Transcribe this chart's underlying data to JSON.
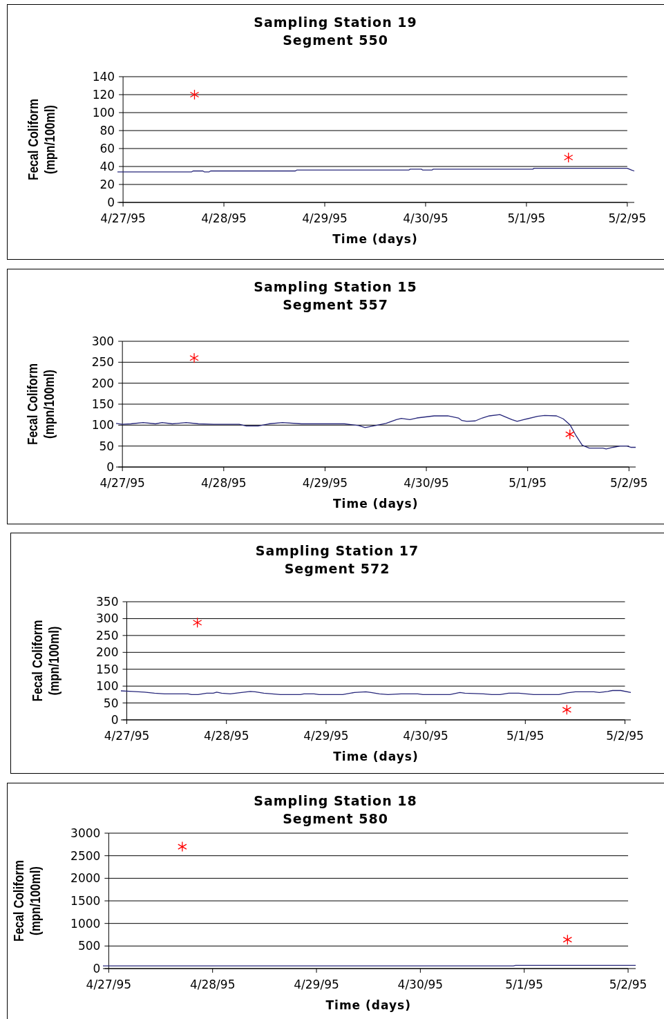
{
  "chart_data": [
    {
      "type": "line",
      "title": "Sampling Station 19",
      "subtitle": "Segment 550",
      "xlabel": "Time (days)",
      "ylabel": "Fecal Coliform\n(mpn/100ml)",
      "xlim": [
        "1995-04-26T22:40",
        "1995-05-02T01:40"
      ],
      "xticks": [
        {
          "value": "1995-04-27",
          "label": "4/27/95"
        },
        {
          "value": "1995-04-28",
          "label": "4/28/95"
        },
        {
          "value": "1995-04-29",
          "label": "4/29/95"
        },
        {
          "value": "1995-04-30",
          "label": "4/30/95"
        },
        {
          "value": "1995-05-01",
          "label": "5/1/95"
        },
        {
          "value": "1995-05-02",
          "label": "5/2/95"
        }
      ],
      "ylim": [
        0,
        140
      ],
      "yticks": [
        0,
        20,
        40,
        60,
        80,
        100,
        120,
        140
      ],
      "grid": "y",
      "series": [
        {
          "type": "line",
          "color": "#26267a",
          "x": [
            "1995-04-26T22:40",
            "1995-04-27T16:20",
            "1995-04-27T16:40",
            "1995-04-27T19:00",
            "1995-04-27T19:20",
            "1995-04-27T20:30",
            "1995-04-27T20:50",
            "1995-04-28T17:00",
            "1995-04-28T17:20",
            "1995-04-29T20:00",
            "1995-04-29T20:20",
            "1995-04-29T23:00",
            "1995-04-29T23:20",
            "1995-04-30T01:30",
            "1995-04-30T01:50",
            "1995-05-01T01:30",
            "1995-05-01T01:50",
            "1995-05-02T00:00",
            "1995-05-02T01:00",
            "1995-05-02T01:40"
          ],
          "values": [
            34,
            34,
            35,
            35,
            34,
            34,
            35,
            35,
            36,
            36,
            37,
            37,
            36,
            36,
            37,
            37,
            38,
            38,
            36,
            35
          ]
        },
        {
          "type": "scatter",
          "color": "#ff0000",
          "marker": "cross",
          "x": [
            "1995-04-27T17:00",
            "1995-05-01T10:00"
          ],
          "values": [
            120,
            50
          ]
        }
      ]
    },
    {
      "type": "line",
      "title": "Sampling Station 15",
      "subtitle": "Segment 557",
      "xlabel": "Time (days)",
      "ylabel": "Fecal Coliform\n(mpn/100ml)",
      "xlim": [
        "1995-04-26T22:30",
        "1995-05-02T01:35"
      ],
      "xticks": [
        {
          "value": "1995-04-27",
          "label": "4/27/95"
        },
        {
          "value": "1995-04-28",
          "label": "4/28/95"
        },
        {
          "value": "1995-04-29",
          "label": "4/29/95"
        },
        {
          "value": "1995-04-30",
          "label": "4/30/95"
        },
        {
          "value": "1995-05-01",
          "label": "5/1/95"
        },
        {
          "value": "1995-05-02",
          "label": "5/2/95"
        }
      ],
      "ylim": [
        0,
        300
      ],
      "yticks": [
        0,
        50,
        100,
        150,
        200,
        250,
        300
      ],
      "grid": "y",
      "series": [
        {
          "type": "line",
          "color": "#26267a",
          "x": [
            "1995-04-26T22:30",
            "1995-04-27T00:00",
            "1995-04-27T02:00",
            "1995-04-27T04:55",
            "1995-04-27T07:50",
            "1995-04-27T09:25",
            "1995-04-27T11:50",
            "1995-04-27T15:05",
            "1995-04-27T18:00",
            "1995-04-27T21:35",
            "1995-04-28T03:40",
            "1995-04-28T05:20",
            "1995-04-28T08:10",
            "1995-04-28T10:40",
            "1995-04-28T13:55",
            "1995-04-28T18:25",
            "1995-04-29T04:35",
            "1995-04-29T07:55",
            "1995-04-29T09:30",
            "1995-04-29T12:00",
            "1995-04-29T14:25",
            "1995-04-29T16:55",
            "1995-04-29T18:05",
            "1995-04-29T20:05",
            "1995-04-29T21:45",
            "1995-04-30T01:50",
            "1995-04-30T05:05",
            "1995-04-30T07:35",
            "1995-04-30T08:25",
            "1995-04-30T09:35",
            "1995-04-30T11:35",
            "1995-04-30T13:15",
            "1995-04-30T14:55",
            "1995-04-30T17:25",
            "1995-04-30T18:35",
            "1995-04-30T20:15",
            "1995-04-30T21:30",
            "1995-04-30T23:05",
            "1995-05-01T02:20",
            "1995-05-01T04:00",
            "1995-05-01T06:50",
            "1995-05-01T08:25",
            "1995-05-01T10:05",
            "1995-05-01T11:20",
            "1995-05-01T12:55",
            "1995-05-01T14:35",
            "1995-05-01T17:50",
            "1995-05-01T18:35",
            "1995-05-01T20:15",
            "1995-05-01T21:55",
            "1995-05-01T23:30",
            "1995-05-02T00:25",
            "1995-05-02T01:35"
          ],
          "values": [
            104,
            102,
            103,
            106,
            103,
            106,
            103,
            106,
            103,
            102,
            102,
            98,
            98,
            103,
            106,
            103,
            103,
            99,
            94,
            99,
            104,
            113,
            116,
            113,
            117,
            122,
            122,
            117,
            111,
            109,
            110,
            117,
            122,
            125,
            120,
            113,
            109,
            113,
            121,
            123,
            122,
            115,
            100,
            77,
            52,
            45,
            45,
            43,
            47,
            50,
            50,
            47,
            47
          ]
        },
        {
          "type": "scatter",
          "color": "#ff0000",
          "marker": "cross",
          "x": [
            "1995-04-27T17:00",
            "1995-05-01T10:00"
          ],
          "values": [
            260,
            78
          ]
        }
      ]
    },
    {
      "type": "line",
      "title": "Sampling Station 17",
      "subtitle": "Segment 572",
      "xlabel": "Time (days)",
      "ylabel": "Fecal Coliform\n(mpn/100ml)",
      "xlim": [
        "1995-04-26T22:35",
        "1995-05-02T01:25"
      ],
      "xticks": [
        {
          "value": "1995-04-27",
          "label": "4/27/95"
        },
        {
          "value": "1995-04-28",
          "label": "4/28/95"
        },
        {
          "value": "1995-04-29",
          "label": "4/29/95"
        },
        {
          "value": "1995-04-30",
          "label": "4/30/95"
        },
        {
          "value": "1995-05-01",
          "label": "5/1/95"
        },
        {
          "value": "1995-05-02",
          "label": "5/2/95"
        }
      ],
      "ylim": [
        0,
        350
      ],
      "yticks": [
        0,
        50,
        100,
        150,
        200,
        250,
        300,
        350
      ],
      "grid": "y",
      "series": [
        {
          "type": "line",
          "color": "#26267a",
          "x": [
            "1995-04-26T22:35",
            "1995-04-27T01:25",
            "1995-04-27T04:15",
            "1995-04-27T06:40",
            "1995-04-27T09:05",
            "1995-04-27T14:45",
            "1995-04-27T15:35",
            "1995-04-27T17:10",
            "1995-04-27T19:15",
            "1995-04-27T20:50",
            "1995-04-27T21:40",
            "1995-04-27T22:50",
            "1995-04-28T00:55",
            "1995-04-28T02:55",
            "1995-04-28T05:45",
            "1995-04-28T06:55",
            "1995-04-28T09:00",
            "1995-04-28T11:00",
            "1995-04-28T13:00",
            "1995-04-28T17:50",
            "1995-04-28T18:40",
            "1995-04-28T21:05",
            "1995-04-28T22:20",
            "1995-04-29T04:00",
            "1995-04-29T06:50",
            "1995-04-29T09:35",
            "1995-04-29T10:50",
            "1995-04-29T12:50",
            "1995-04-29T14:55",
            "1995-04-29T18:05",
            "1995-04-29T22:05",
            "1995-04-29T23:20",
            "1995-04-30T05:50",
            "1995-04-30T08:15",
            "1995-04-30T09:25",
            "1995-04-30T13:55",
            "1995-04-30T15:55",
            "1995-04-30T17:55",
            "1995-04-30T20:00",
            "1995-04-30T22:25",
            "1995-05-01T02:00",
            "1995-05-01T08:05",
            "1995-05-01T10:05",
            "1995-05-01T12:05",
            "1995-05-01T16:30",
            "1995-05-01T17:50",
            "1995-05-01T19:50",
            "1995-05-01T21:00",
            "1995-05-01T23:00",
            "1995-05-02T01:25"
          ],
          "values": [
            86,
            84,
            82,
            79,
            77,
            77,
            75,
            75,
            79,
            79,
            82,
            79,
            77,
            80,
            84,
            83,
            79,
            77,
            75,
            75,
            77,
            77,
            75,
            75,
            81,
            83,
            81,
            77,
            75,
            77,
            77,
            75,
            75,
            81,
            79,
            77,
            75,
            75,
            79,
            79,
            75,
            75,
            80,
            83,
            83,
            81,
            84,
            87,
            87,
            81
          ]
        },
        {
          "type": "scatter",
          "color": "#ff0000",
          "marker": "cross",
          "x": [
            "1995-04-27T17:00",
            "1995-05-01T10:00"
          ],
          "values": [
            288,
            30
          ]
        }
      ]
    },
    {
      "type": "line",
      "title": "Sampling Station 18",
      "subtitle": "Segment 580",
      "xlabel": "Time (days)",
      "ylabel": "Fecal Coliform\n(mpn/100ml)",
      "xlim": [
        "1995-04-26T22:40",
        "1995-05-02T01:45"
      ],
      "xticks": [
        {
          "value": "1995-04-27",
          "label": "4/27/95"
        },
        {
          "value": "1995-04-28",
          "label": "4/28/95"
        },
        {
          "value": "1995-04-29",
          "label": "4/29/95"
        },
        {
          "value": "1995-04-30",
          "label": "4/30/95"
        },
        {
          "value": "1995-05-01",
          "label": "5/1/95"
        },
        {
          "value": "1995-05-02",
          "label": "5/2/95"
        }
      ],
      "ylim": [
        0,
        3000
      ],
      "yticks": [
        0,
        500,
        1000,
        1500,
        2000,
        2500,
        3000
      ],
      "grid": "y",
      "series": [
        {
          "type": "line",
          "color": "#26267a",
          "x": [
            "1995-04-26T22:40",
            "1995-04-30T21:30",
            "1995-04-30T22:00",
            "1995-05-02T01:45"
          ],
          "values": [
            60,
            60,
            70,
            70
          ]
        },
        {
          "type": "scatter",
          "color": "#ff0000",
          "marker": "cross",
          "x": [
            "1995-04-27T17:00",
            "1995-05-01T10:00"
          ],
          "values": [
            2700,
            640
          ]
        }
      ]
    }
  ]
}
